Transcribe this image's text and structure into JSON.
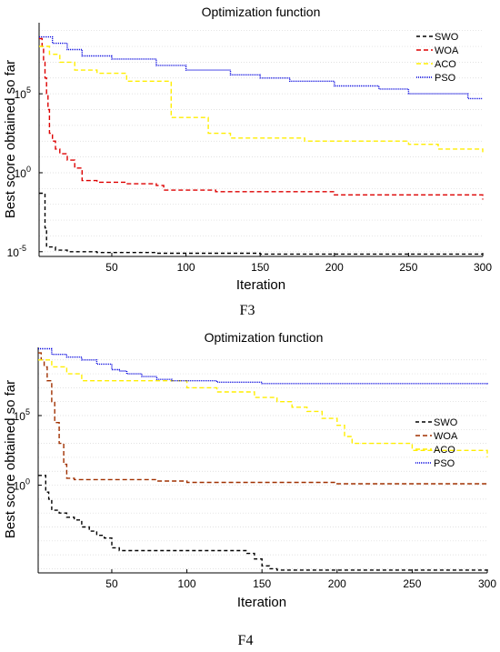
{
  "chart_data": [
    {
      "type": "line",
      "title": "Optimization function",
      "xlabel": "Iteration",
      "ylabel": "Best score obtained so far",
      "caption": "F3",
      "xlim": [
        1,
        300
      ],
      "ylim_exp": [
        -5.3,
        9.5
      ],
      "y_scale": "log",
      "grid": true,
      "legend_position": "top-right",
      "x_ticks": [
        50,
        100,
        150,
        200,
        250,
        300
      ],
      "y_ticks": [
        {
          "base": "10",
          "exp": "5",
          "value_exp": 5
        },
        {
          "base": "10",
          "exp": "0",
          "value_exp": 0
        },
        {
          "base": "10",
          "exp": "-5",
          "value_exp": -5
        }
      ],
      "series": [
        {
          "name": "SWO",
          "color": "#000000",
          "dash": "4 3",
          "x": [
            1,
            3,
            5,
            6,
            8,
            12,
            20,
            40,
            80,
            150,
            300
          ],
          "y_exp": [
            -1.3,
            -1.3,
            -3.5,
            -4.7,
            -4.7,
            -4.9,
            -5.0,
            -5.05,
            -5.1,
            -5.15,
            -5.2
          ]
        },
        {
          "name": "WOA",
          "color": "#dd0000",
          "dash": "5 3",
          "x": [
            1,
            2,
            3,
            4,
            5,
            6,
            7,
            8,
            10,
            12,
            15,
            20,
            25,
            30,
            40,
            60,
            80,
            85,
            120,
            180,
            200,
            300
          ],
          "y_exp": [
            8.5,
            8.5,
            8.0,
            7.0,
            6.0,
            5.0,
            4.0,
            2.5,
            2.0,
            1.5,
            1.2,
            0.8,
            0.3,
            -0.5,
            -0.6,
            -0.7,
            -0.8,
            -1.1,
            -1.2,
            -1.2,
            -1.4,
            -1.7
          ]
        },
        {
          "name": "ACO",
          "color": "#ffee00",
          "dash": "5 3",
          "x": [
            1,
            5,
            8,
            15,
            25,
            40,
            60,
            80,
            90,
            110,
            115,
            125,
            130,
            180,
            250,
            270,
            300
          ],
          "y_exp": [
            8.0,
            8.0,
            7.5,
            7.0,
            6.5,
            6.3,
            5.8,
            5.8,
            3.5,
            3.5,
            2.5,
            2.5,
            2.2,
            2.0,
            1.8,
            1.5,
            1.3
          ]
        },
        {
          "name": "PSO",
          "color": "#0000dd",
          "dash": "1 1",
          "x": [
            1,
            5,
            10,
            20,
            30,
            50,
            80,
            100,
            130,
            150,
            170,
            200,
            230,
            250,
            290,
            300
          ],
          "y_exp": [
            8.6,
            8.6,
            8.2,
            7.8,
            7.4,
            7.2,
            6.8,
            6.5,
            6.2,
            6.0,
            5.8,
            5.5,
            5.3,
            5.0,
            4.7,
            4.7
          ]
        }
      ]
    },
    {
      "type": "line",
      "title": "Optimization function",
      "xlabel": "Iteration",
      "ylabel": "Best score obtained so far",
      "caption": "F4",
      "xlim": [
        1,
        300
      ],
      "ylim_exp": [
        -6.3,
        9.9
      ],
      "y_scale": "log",
      "grid": true,
      "legend_position": "middle-right",
      "x_ticks": [
        50,
        100,
        150,
        200,
        250,
        300
      ],
      "y_ticks": [
        {
          "base": "10",
          "exp": "5",
          "value_exp": 5
        },
        {
          "base": "10",
          "exp": "0",
          "value_exp": 0
        }
      ],
      "series": [
        {
          "name": "SWO",
          "color": "#000000",
          "dash": "4 3",
          "x": [
            1,
            5,
            6,
            8,
            10,
            15,
            20,
            25,
            30,
            35,
            40,
            45,
            50,
            55,
            80,
            120,
            140,
            145,
            150,
            155,
            160,
            300
          ],
          "y_exp": [
            0.7,
            0.7,
            -0.5,
            -1.0,
            -1.8,
            -2.0,
            -2.3,
            -2.5,
            -3.0,
            -3.3,
            -3.6,
            -3.8,
            -4.5,
            -4.7,
            -4.7,
            -4.7,
            -4.9,
            -5.3,
            -5.8,
            -6.0,
            -6.1,
            -6.2
          ]
        },
        {
          "name": "WOA",
          "color": "#a03000",
          "dash": "5 3",
          "x": [
            1,
            3,
            5,
            7,
            10,
            12,
            15,
            18,
            20,
            25,
            40,
            80,
            100,
            150,
            200,
            300
          ],
          "y_exp": [
            9.5,
            9.0,
            8.5,
            7.5,
            6.0,
            4.5,
            3.0,
            1.5,
            0.5,
            0.4,
            0.4,
            0.3,
            0.2,
            0.2,
            0.1,
            0.0
          ]
        },
        {
          "name": "ACO",
          "color": "#ffee00",
          "dash": "5 3",
          "x": [
            1,
            5,
            10,
            20,
            30,
            50,
            80,
            100,
            110,
            120,
            145,
            160,
            170,
            180,
            190,
            200,
            205,
            210,
            250,
            300
          ],
          "y_exp": [
            9.0,
            9.0,
            8.5,
            8.0,
            7.5,
            7.5,
            7.5,
            7.0,
            7.0,
            6.7,
            6.3,
            6.0,
            5.6,
            5.3,
            4.8,
            4.3,
            3.5,
            3.0,
            2.5,
            2.0
          ]
        },
        {
          "name": "PSO",
          "color": "#0000dd",
          "dash": "1 1",
          "x": [
            1,
            5,
            10,
            20,
            30,
            40,
            50,
            55,
            60,
            70,
            80,
            90,
            100,
            120,
            150,
            200,
            300
          ],
          "y_exp": [
            9.8,
            9.8,
            9.4,
            9.2,
            9.0,
            8.7,
            8.3,
            8.2,
            8.0,
            7.8,
            7.6,
            7.5,
            7.5,
            7.4,
            7.3,
            7.3,
            7.2
          ]
        }
      ]
    }
  ]
}
